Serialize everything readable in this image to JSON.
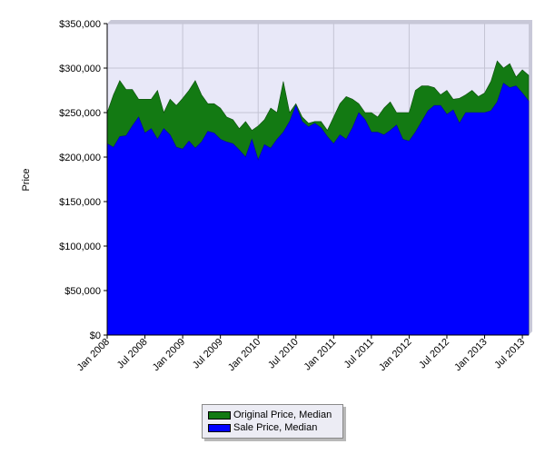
{
  "chart_data": {
    "type": "area",
    "ylabel": "Price",
    "xlabel": "",
    "ylim": [
      0,
      350000
    ],
    "y_ticks": [
      0,
      50000,
      100000,
      150000,
      200000,
      250000,
      300000,
      350000
    ],
    "y_tick_labels": [
      "$0",
      "$50,000",
      "$100,000",
      "$150,000",
      "$200,000",
      "$250,000",
      "$300,000",
      "$350,000"
    ],
    "x_tick_labels": [
      "Jan 2008",
      "Jul 2008",
      "Jan 2009",
      "Jul 2009",
      "Jan 2010",
      "Jul 2010",
      "Jan 2011",
      "Jul 2011",
      "Jan 2012",
      "Jul 2012",
      "Jan 2013",
      "Jul 2013"
    ],
    "x_tick_months": [
      0,
      6,
      12,
      18,
      24,
      30,
      36,
      42,
      48,
      54,
      60,
      66
    ],
    "grid": true,
    "legend_position": "bottom",
    "series": [
      {
        "name": "Original Price, Median",
        "color": "#137a13",
        "values": [
          250000,
          270000,
          286000,
          276000,
          276000,
          265000,
          265000,
          265000,
          275000,
          250000,
          265000,
          258000,
          266000,
          275000,
          286000,
          270000,
          260000,
          260000,
          255000,
          245000,
          242000,
          232000,
          240000,
          230000,
          235000,
          242000,
          255000,
          250000,
          285000,
          250000,
          260000,
          245000,
          238000,
          240000,
          240000,
          230000,
          245000,
          260000,
          268000,
          265000,
          260000,
          250000,
          250000,
          245000,
          255000,
          262000,
          250000,
          250000,
          250000,
          275000,
          280000,
          280000,
          278000,
          270000,
          275000,
          265000,
          266000,
          270000,
          275000,
          268000,
          272000,
          285000,
          308000,
          300000,
          305000,
          290000,
          298000,
          292000
        ]
      },
      {
        "name": "Sale Price, Median",
        "color": "#0000ff",
        "values": [
          215000,
          211000,
          223000,
          224000,
          235000,
          245000,
          227000,
          232000,
          220000,
          232000,
          225000,
          211000,
          209000,
          218000,
          210000,
          217000,
          229000,
          227000,
          220000,
          217000,
          215000,
          208000,
          200000,
          220000,
          197000,
          214000,
          210000,
          220000,
          228000,
          240000,
          258000,
          240000,
          234000,
          238000,
          233000,
          223000,
          215000,
          225000,
          220000,
          233000,
          250000,
          242000,
          228000,
          228000,
          225000,
          230000,
          236000,
          220000,
          218000,
          228000,
          240000,
          252000,
          258000,
          258000,
          248000,
          253000,
          238000,
          250000,
          250000,
          250000,
          250000,
          252000,
          262000,
          283000,
          278000,
          280000,
          272000,
          263000
        ]
      }
    ]
  }
}
